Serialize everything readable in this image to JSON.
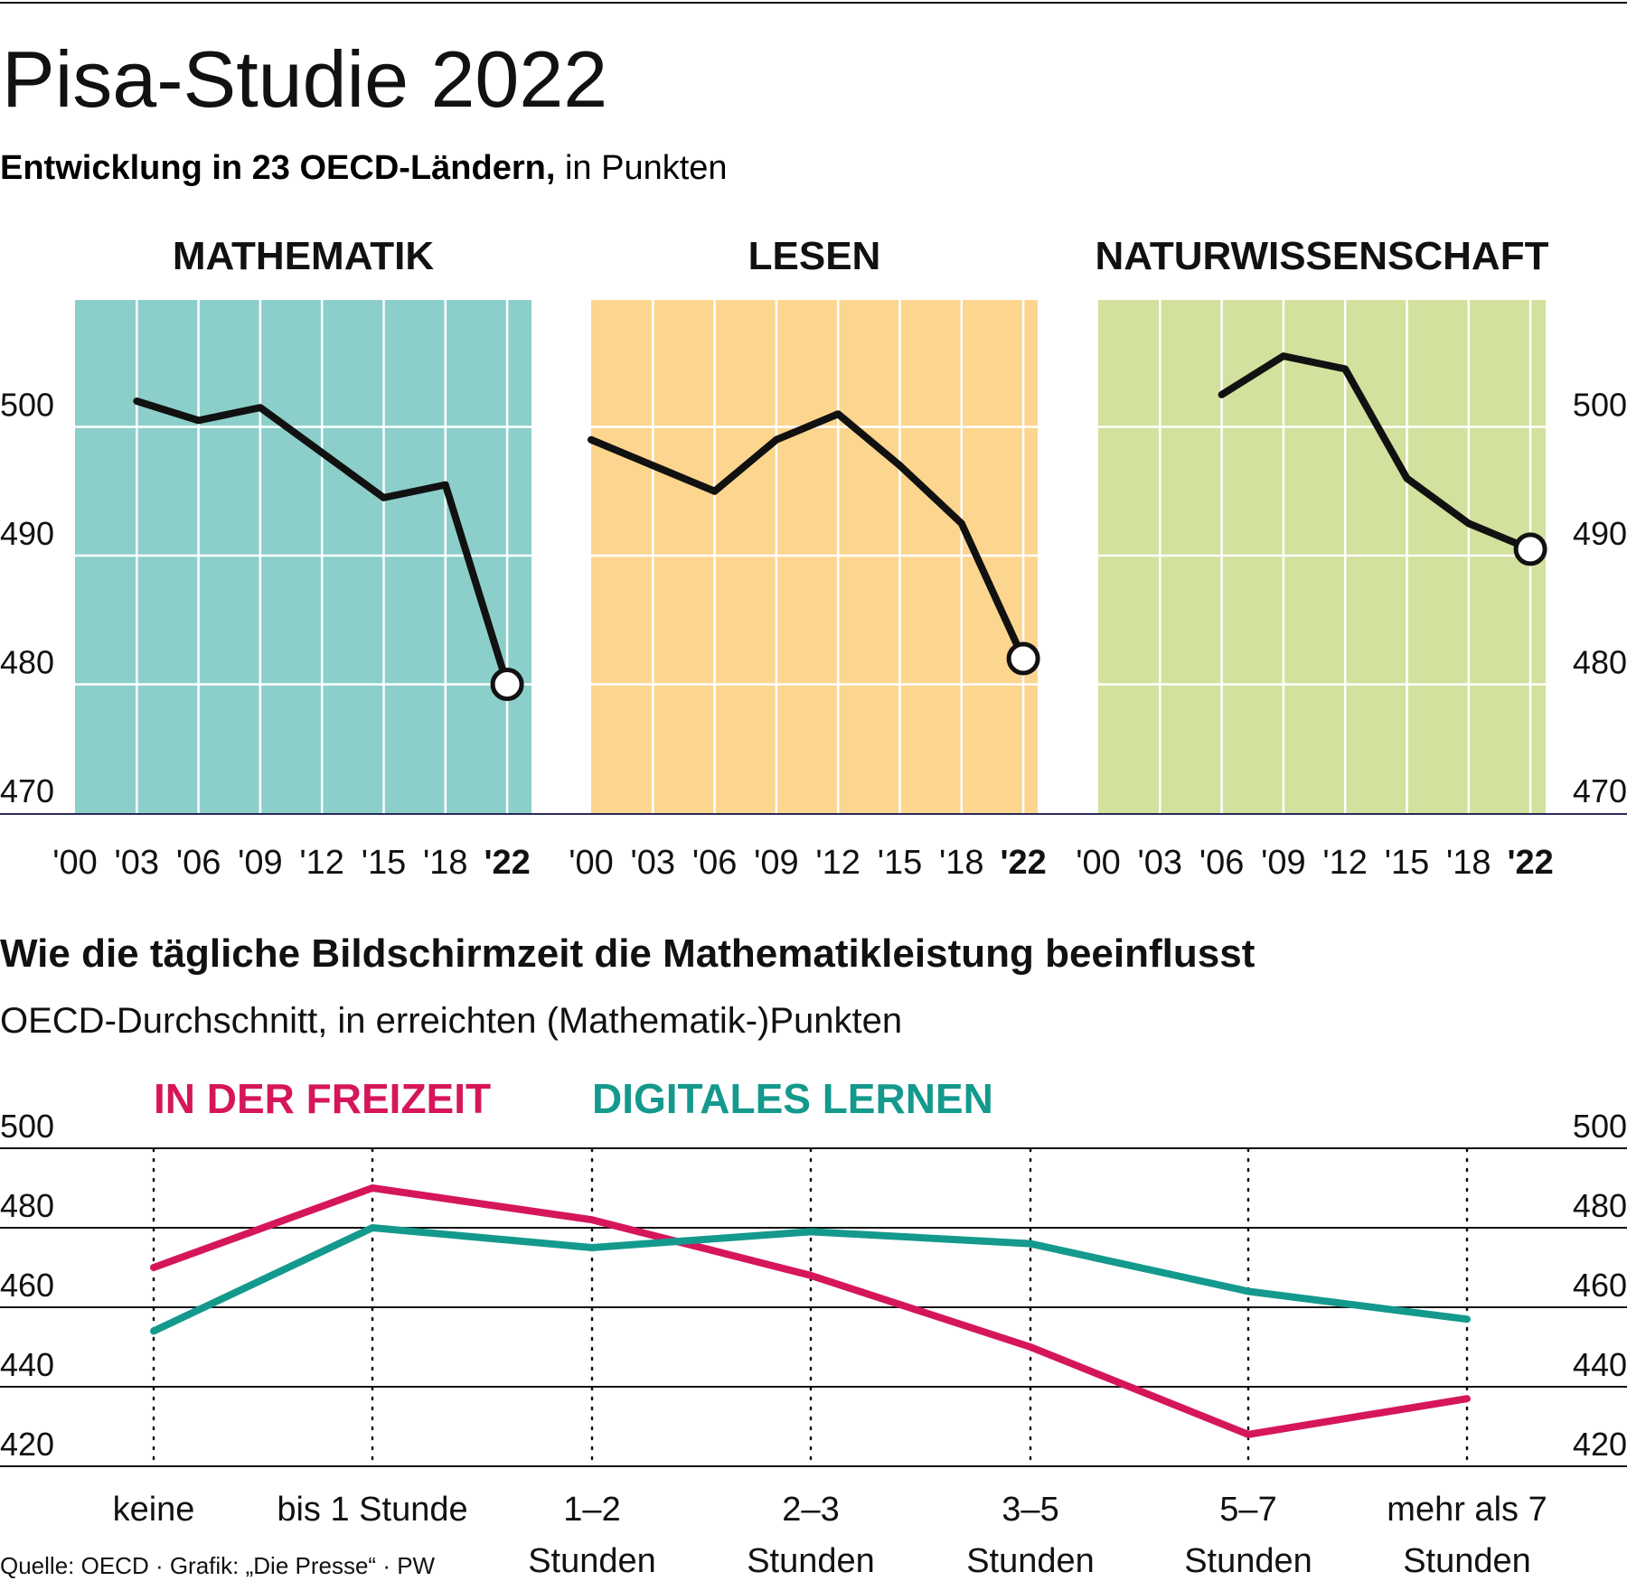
{
  "header": {
    "title": "Pisa-Studie 2022",
    "subtitle_bold": "Entwicklung in 23 OECD-Ländern,",
    "subtitle_rest": " in Punkten"
  },
  "colors": {
    "mathematik": "#8ccfca",
    "lesen": "#fcd58f",
    "naturwissenschaft": "#d2e19d",
    "freizeit": "#d6165a",
    "digital": "#14998d",
    "line": "#111111"
  },
  "section2": {
    "title": "Wie die tägliche Bildschirmzeit die Mathematikleistung beeinflusst",
    "subtitle": "OECD-Durchschnitt, in erreichten (Mathematik-)Punkten"
  },
  "source": "Quelle: OECD · Grafik: „Die Presse“ · PW",
  "chart_data": [
    {
      "type": "line",
      "title": "MATHEMATIK",
      "categories": [
        "'00",
        "'03",
        "'06",
        "'09",
        "'12",
        "'15",
        "'18",
        "'22"
      ],
      "values": [
        null,
        502,
        500.5,
        501.5,
        498,
        494.5,
        495.5,
        480
      ],
      "ylim": [
        470,
        510
      ],
      "yticks": [
        "500",
        "490",
        "480",
        "470"
      ],
      "highlight_last": true
    },
    {
      "type": "line",
      "title": "LESEN",
      "categories": [
        "'00",
        "'03",
        "'06",
        "'09",
        "'12",
        "'15",
        "'18",
        "'22"
      ],
      "values": [
        499,
        497,
        495,
        499,
        501,
        497,
        492.5,
        482
      ],
      "ylim": [
        470,
        510
      ],
      "yticks": [],
      "highlight_last": true
    },
    {
      "type": "line",
      "title": "NATURWISSENSCHAFT",
      "categories": [
        "'00",
        "'03",
        "'06",
        "'09",
        "'12",
        "'15",
        "'18",
        "'22"
      ],
      "values": [
        null,
        null,
        502.5,
        505.5,
        504.5,
        496,
        492.5,
        490.5
      ],
      "ylim": [
        470,
        510
      ],
      "yticks": [
        "500",
        "490",
        "480",
        "470"
      ],
      "highlight_last": true
    },
    {
      "type": "line",
      "categories": [
        "keine",
        "bis 1 Stunde",
        "1–2 Stunden",
        "2–3 Stunden",
        "3–5 Stunden",
        "5–7 Stunden",
        "mehr als 7 Stunden"
      ],
      "category_lines": [
        [
          "keine"
        ],
        [
          "bis 1 Stunde"
        ],
        [
          "1–2",
          "Stunden"
        ],
        [
          "2–3",
          "Stunden"
        ],
        [
          "3–5",
          "Stunden"
        ],
        [
          "5–7",
          "Stunden"
        ],
        [
          "mehr als 7",
          "Stunden"
        ]
      ],
      "series": [
        {
          "name": "IN DER FREIZEIT",
          "values": [
            470,
            490,
            482,
            468,
            450,
            428,
            437
          ]
        },
        {
          "name": "DIGITALES LERNEN",
          "values": [
            454,
            480,
            475,
            479,
            476,
            464,
            457
          ]
        }
      ],
      "ylim": [
        420,
        500
      ],
      "yticks": [
        "500",
        "480",
        "460",
        "440",
        "420"
      ]
    }
  ]
}
